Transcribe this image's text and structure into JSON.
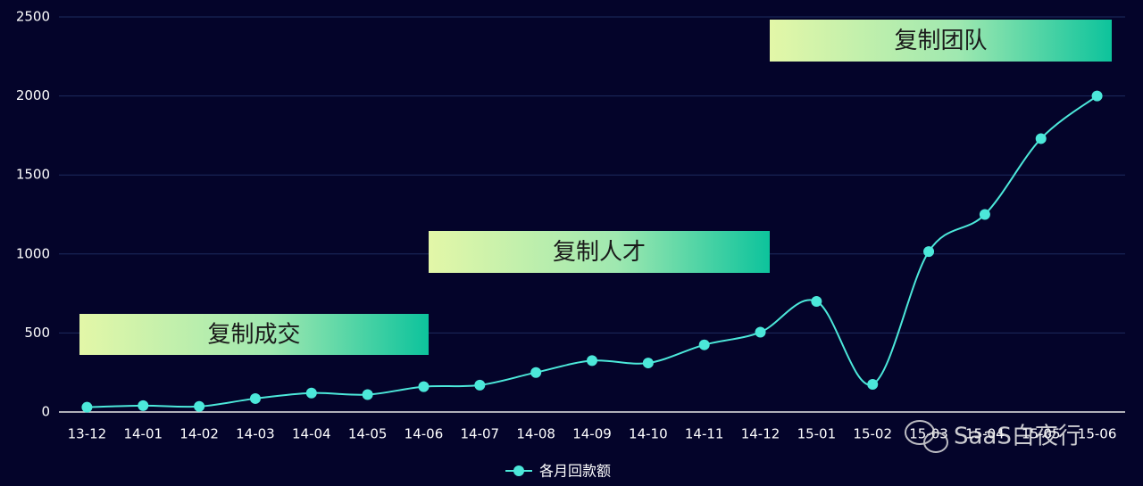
{
  "chart_data": {
    "type": "line",
    "categories": [
      "13-12",
      "14-01",
      "14-02",
      "14-03",
      "14-04",
      "14-05",
      "14-06",
      "14-07",
      "14-08",
      "14-09",
      "14-10",
      "14-11",
      "14-12",
      "15-01",
      "15-02",
      "15-03",
      "15-04",
      "15-05",
      "15-06"
    ],
    "series": [
      {
        "name": "各月回款额",
        "color": "#4ce8da",
        "values": [
          30,
          40,
          35,
          85,
          120,
          110,
          160,
          170,
          250,
          325,
          310,
          425,
          505,
          700,
          175,
          1015,
          1250,
          1730,
          2000
        ]
      }
    ],
    "ylim": [
      0,
      2500
    ],
    "yticks": [
      0,
      500,
      1000,
      1500,
      2000,
      2500
    ],
    "grid": true,
    "smooth": true,
    "legend": "bottom",
    "annotations": [
      {
        "text": "复制成交"
      },
      {
        "text": "复制人才"
      },
      {
        "text": "复制团队"
      }
    ]
  },
  "watermark": "SaaS白夜行"
}
